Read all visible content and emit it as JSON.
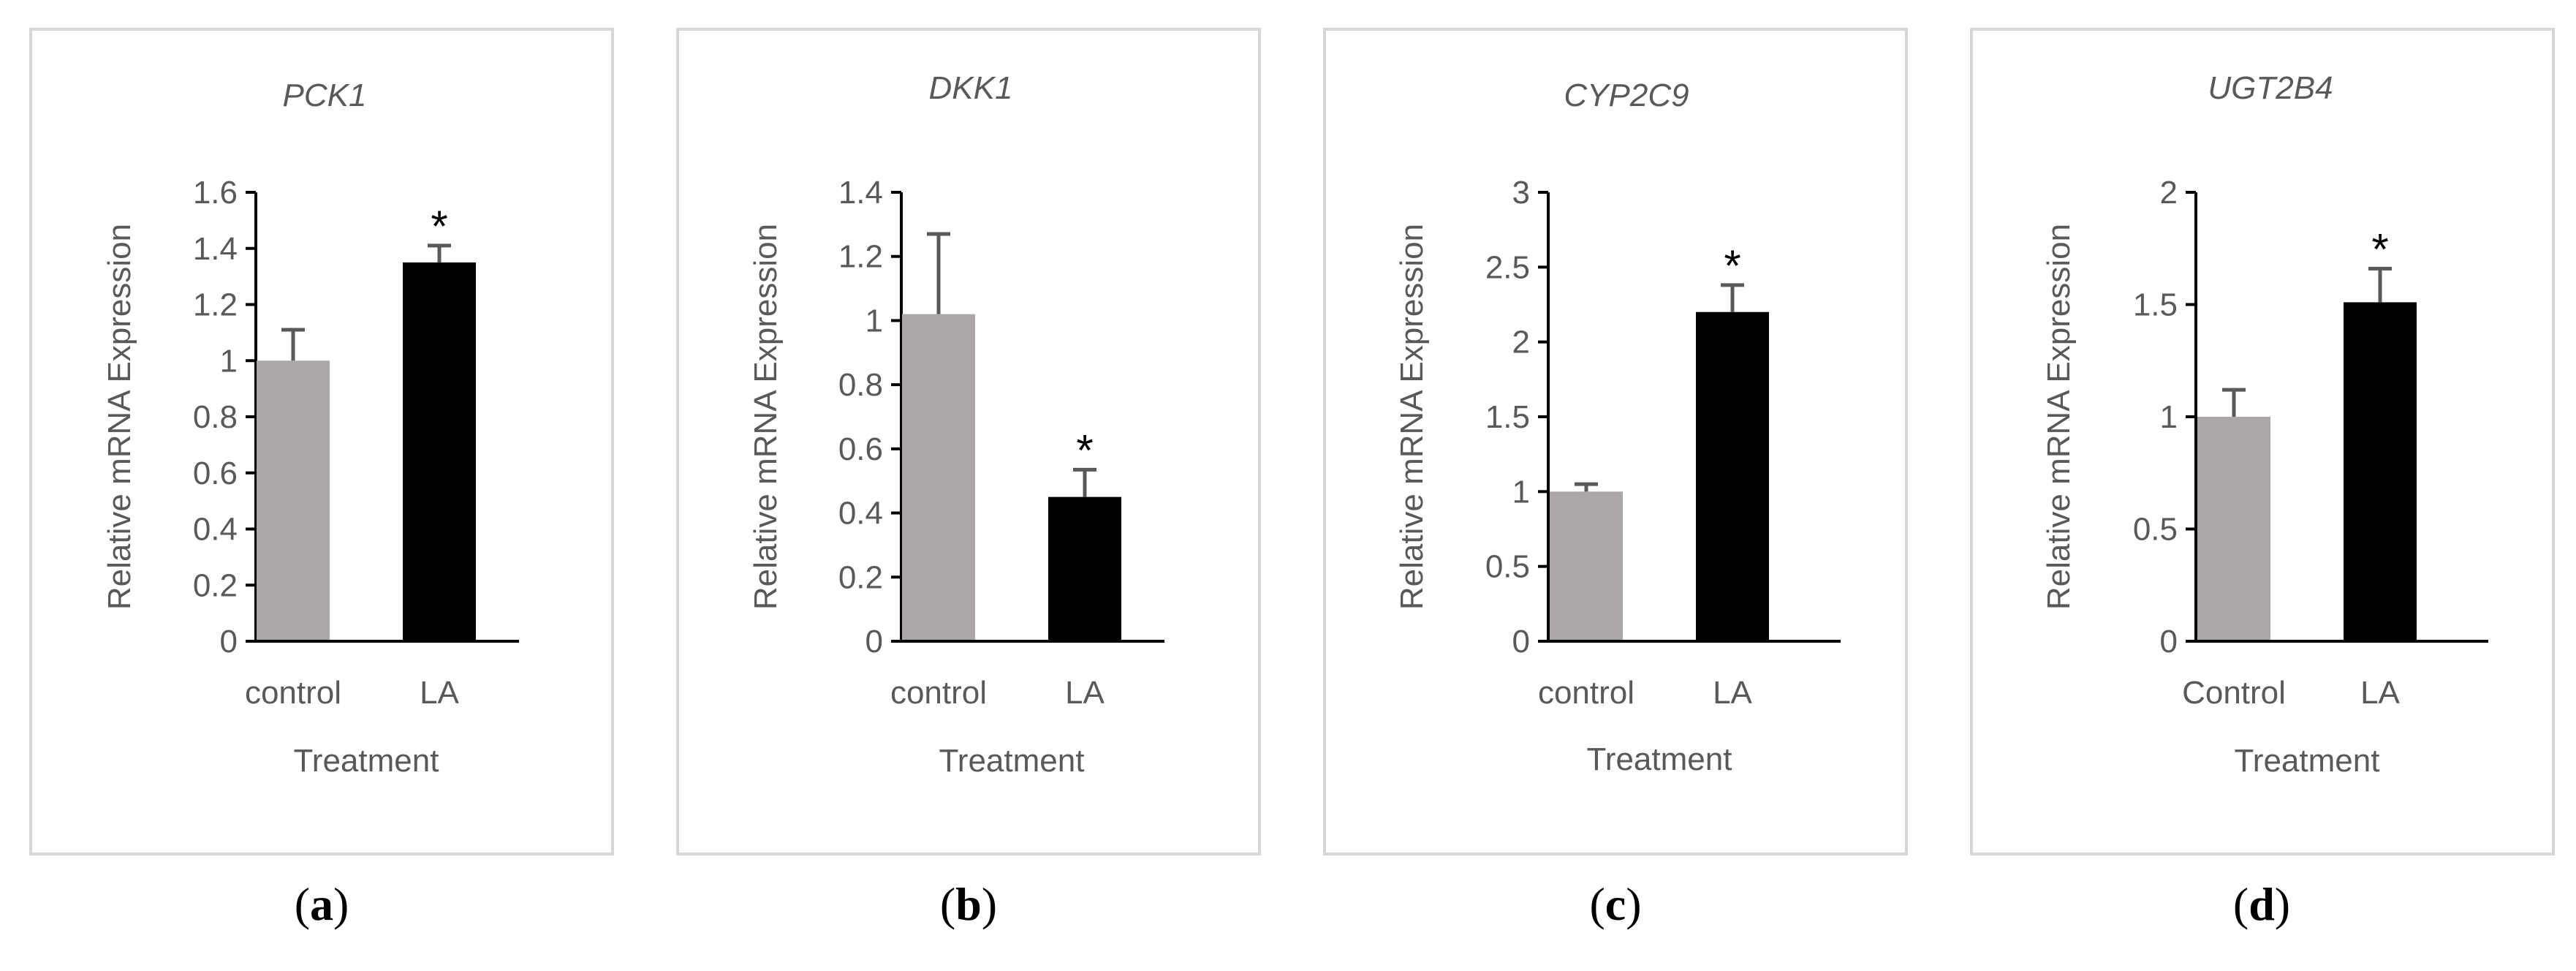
{
  "figure": {
    "colors": {
      "control": "#aba7a6",
      "treatment": "#000000"
    }
  },
  "chart_data": [
    {
      "type": "bar",
      "panel_caption": "a",
      "title": "PCK1",
      "xlabel": "Treatment",
      "ylabel": "Relative mRNA Expression",
      "categories": [
        "control",
        "LA"
      ],
      "values": [
        1.0,
        1.35
      ],
      "errors": [
        0.11,
        0.06
      ],
      "significant": [
        false,
        true
      ],
      "significance_marker": "*",
      "ylim": [
        0,
        1.6
      ],
      "yticks": [
        0,
        0.2,
        0.4,
        0.6,
        0.8,
        1,
        1.2,
        1.4,
        1.6
      ],
      "ytick_labels": [
        "0",
        "0.2",
        "0.4",
        "0.6",
        "0.8",
        "1",
        "1.2",
        "1.4",
        "1.6"
      ]
    },
    {
      "type": "bar",
      "panel_caption": "b",
      "title": "DKK1",
      "xlabel": "Treatment",
      "ylabel": "Relative mRNA Expression",
      "categories": [
        "control",
        "LA"
      ],
      "values": [
        1.02,
        0.45
      ],
      "errors": [
        0.25,
        0.085
      ],
      "significant": [
        false,
        true
      ],
      "significance_marker": "*",
      "ylim": [
        0,
        1.4
      ],
      "yticks": [
        0,
        0.2,
        0.4,
        0.6,
        0.8,
        1,
        1.2,
        1.4
      ],
      "ytick_labels": [
        "0",
        "0.2",
        "0.4",
        "0.6",
        "0.8",
        "1",
        "1.2",
        "1.4"
      ]
    },
    {
      "type": "bar",
      "panel_caption": "c",
      "title": "CYP2C9",
      "xlabel": "Treatment",
      "ylabel": "Relative mRNA Expression",
      "categories": [
        "control",
        "LA"
      ],
      "values": [
        1.0,
        2.2
      ],
      "errors": [
        0.05,
        0.18
      ],
      "significant": [
        false,
        true
      ],
      "significance_marker": "*",
      "ylim": [
        0,
        3
      ],
      "yticks": [
        0,
        0.5,
        1,
        1.5,
        2,
        2.5,
        3
      ],
      "ytick_labels": [
        "0",
        "0.5",
        "1",
        "1.5",
        "2",
        "2.5",
        "3"
      ]
    },
    {
      "type": "bar",
      "panel_caption": "d",
      "title": "UGT2B4",
      "xlabel": "Treatment",
      "ylabel": "Relative mRNA Expression",
      "categories": [
        "Control",
        "LA"
      ],
      "values": [
        1.0,
        1.51
      ],
      "errors": [
        0.12,
        0.15
      ],
      "significant": [
        false,
        true
      ],
      "significance_marker": "*",
      "ylim": [
        0,
        2
      ],
      "yticks": [
        0,
        0.5,
        1,
        1.5,
        2
      ],
      "ytick_labels": [
        "0",
        "0.5",
        "1",
        "1.5",
        "2"
      ]
    }
  ]
}
